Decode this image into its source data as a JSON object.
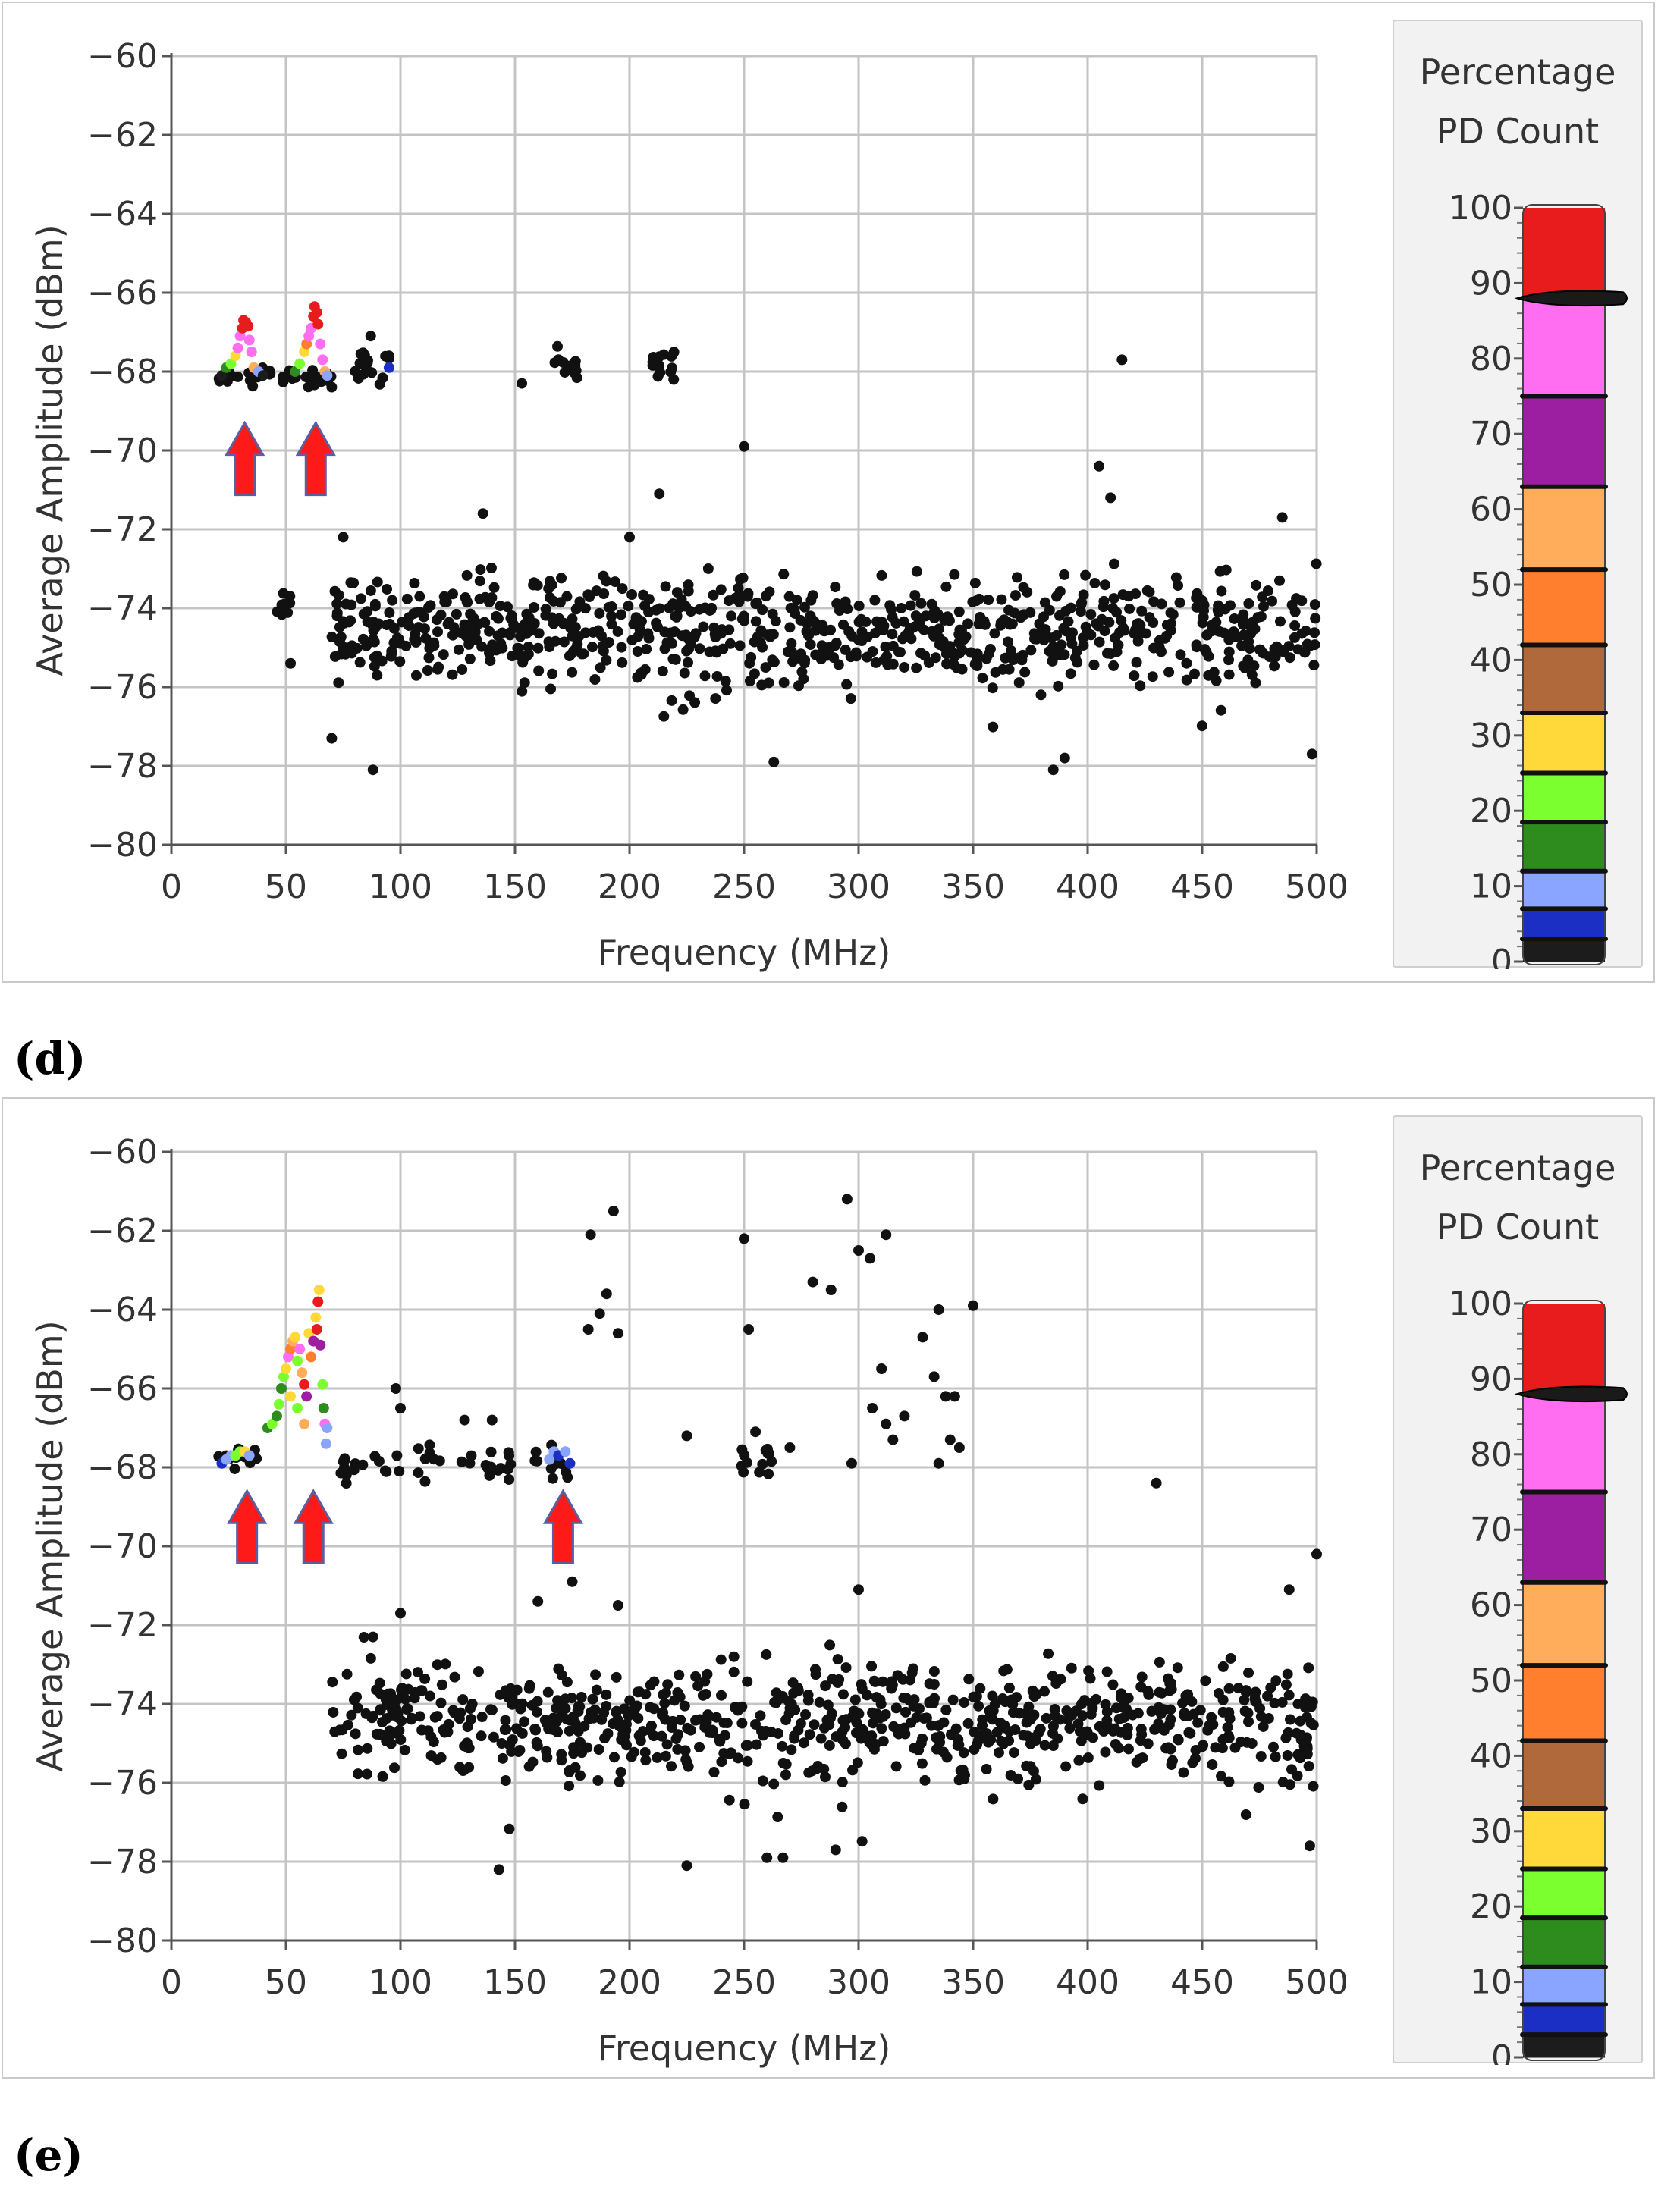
{
  "colors": {
    "point_default": "#111111",
    "grid": "#c4c4c4",
    "axis_text": "#333333",
    "arrow": "#ff1a1a",
    "arrow_edge": "#5a5fa0"
  },
  "legend": {
    "title_line1": "Percentage",
    "title_line2": "PD Count",
    "ticks": [
      "100",
      "90",
      "80",
      "70",
      "60",
      "50",
      "40",
      "30",
      "20",
      "10",
      "0"
    ],
    "bands": [
      {
        "from": 0,
        "to": 3,
        "color": "#1c1c1c"
      },
      {
        "from": 3,
        "to": 7,
        "color": "#1b2fc4"
      },
      {
        "from": 7,
        "to": 12,
        "color": "#8aa5ff"
      },
      {
        "from": 12,
        "to": 18.5,
        "color": "#2e8b1e"
      },
      {
        "from": 18.5,
        "to": 25,
        "color": "#7cff2e"
      },
      {
        "from": 25,
        "to": 33,
        "color": "#ffd93a"
      },
      {
        "from": 33,
        "to": 42,
        "color": "#b0693a"
      },
      {
        "from": 42,
        "to": 52,
        "color": "#ff7f2e"
      },
      {
        "from": 52,
        "to": 63,
        "color": "#ffad5a"
      },
      {
        "from": 63,
        "to": 75,
        "color": "#9b1fa0"
      },
      {
        "from": 75,
        "to": 88,
        "color": "#ff6ef0"
      },
      {
        "from": 88,
        "to": 100,
        "color": "#e81c1c"
      }
    ],
    "band_marks": [
      3,
      7,
      12,
      18.5,
      25,
      33,
      42,
      52,
      63,
      75
    ],
    "pointer_value": 88
  },
  "chart_data": [
    {
      "panel": "d",
      "caption": "(d)",
      "type": "scatter",
      "xlabel": "Frequency (MHz)",
      "ylabel": "Average Amplitude (dBm)",
      "xlim": [
        0,
        500
      ],
      "ylim": [
        -80,
        -60
      ],
      "xticks": [
        "0",
        "50",
        "100",
        "150",
        "200",
        "250",
        "300",
        "350",
        "400",
        "450",
        "500"
      ],
      "yticks": [
        "-60",
        "-62",
        "-64",
        "-66",
        "-68",
        "-70",
        "-72",
        "-74",
        "-76",
        "-78",
        "-80"
      ],
      "grid": true,
      "arrows_at_mhz": [
        32,
        63
      ],
      "arrow_tip_dbm": -69.3,
      "colored_points": [
        [
          22,
          -68.1,
          "#1c1c1c"
        ],
        [
          24,
          -67.9,
          "#2e8b1e"
        ],
        [
          26,
          -67.8,
          "#7cff2e"
        ],
        [
          28,
          -67.6,
          "#ffd93a"
        ],
        [
          29,
          -67.4,
          "#ff6ef0"
        ],
        [
          30,
          -67.1,
          "#ff6ef0"
        ],
        [
          31,
          -66.9,
          "#e81c1c"
        ],
        [
          31.5,
          -66.7,
          "#e81c1c"
        ],
        [
          32.5,
          -66.75,
          "#e81c1c"
        ],
        [
          33.5,
          -66.85,
          "#e81c1c"
        ],
        [
          34,
          -67.2,
          "#ff6ef0"
        ],
        [
          35,
          -67.5,
          "#ff6ef0"
        ],
        [
          36,
          -67.9,
          "#ffad5a"
        ],
        [
          38,
          -68.0,
          "#8aa5ff"
        ],
        [
          40,
          -68.1,
          "#1c1c1c"
        ],
        [
          54,
          -68.0,
          "#2e8b1e"
        ],
        [
          56,
          -67.8,
          "#7cff2e"
        ],
        [
          58,
          -67.5,
          "#ffd93a"
        ],
        [
          59,
          -67.3,
          "#ff7f2e"
        ],
        [
          60,
          -67.1,
          "#ff6ef0"
        ],
        [
          61,
          -66.9,
          "#ff6ef0"
        ],
        [
          62,
          -66.6,
          "#e81c1c"
        ],
        [
          62.5,
          -66.35,
          "#e81c1c"
        ],
        [
          63.5,
          -66.5,
          "#e81c1c"
        ],
        [
          64,
          -66.8,
          "#e81c1c"
        ],
        [
          65,
          -67.3,
          "#ff6ef0"
        ],
        [
          66,
          -67.7,
          "#ff6ef0"
        ],
        [
          67,
          -68.0,
          "#ffad5a"
        ],
        [
          68,
          -68.1,
          "#8aa5ff"
        ],
        [
          95,
          -67.9,
          "#1b2fc4"
        ]
      ],
      "noise_clusters": [
        {
          "x": [
            20,
            70
          ],
          "y": [
            -68.6,
            -67.7
          ],
          "n": 42
        },
        {
          "x": [
            80,
            98
          ],
          "y": [
            -68.6,
            -67.2
          ],
          "n": 16
        },
        {
          "x": [
            165,
            178
          ],
          "y": [
            -68.3,
            -67.2
          ],
          "n": 12
        },
        {
          "x": [
            208,
            220
          ],
          "y": [
            -68.5,
            -67.2
          ],
          "n": 16
        },
        {
          "x": [
            46,
            52
          ],
          "y": [
            -74.6,
            -73.2
          ],
          "n": 10
        },
        {
          "x": [
            70,
            500
          ],
          "y": [
            -76.5,
            -72.6
          ],
          "n": 760
        },
        {
          "x": [
            70,
            500
          ],
          "y": [
            -78.2,
            -71.8
          ],
          "n": 70
        }
      ],
      "outliers": [
        [
          87,
          -67.1
        ],
        [
          95,
          -67.6
        ],
        [
          153,
          -68.3
        ],
        [
          213,
          -71.1
        ],
        [
          250,
          -69.9
        ],
        [
          415,
          -67.7
        ],
        [
          405,
          -70.4
        ],
        [
          410,
          -71.2
        ],
        [
          136,
          -71.6
        ],
        [
          75,
          -72.2
        ],
        [
          200,
          -72.2
        ],
        [
          485,
          -71.7
        ],
        [
          263,
          -77.9
        ],
        [
          385,
          -78.1
        ],
        [
          390,
          -77.8
        ],
        [
          88,
          -78.1
        ],
        [
          70,
          -77.3
        ],
        [
          498,
          -77.7
        ],
        [
          52,
          -75.4
        ]
      ]
    },
    {
      "panel": "e",
      "caption": "(e)",
      "type": "scatter",
      "xlabel": "Frequency (MHz)",
      "ylabel": "Average Amplitude (dBm)",
      "xlim": [
        0,
        500
      ],
      "ylim": [
        -80,
        -60
      ],
      "xticks": [
        "0",
        "50",
        "100",
        "150",
        "200",
        "250",
        "300",
        "350",
        "400",
        "450",
        "500"
      ],
      "yticks": [
        "-60",
        "-62",
        "-64",
        "-66",
        "-68",
        "-70",
        "-72",
        "-74",
        "-76",
        "-78",
        "-80"
      ],
      "grid": true,
      "arrows_at_mhz": [
        33,
        62,
        171
      ],
      "arrow_tip_dbm": -68.6,
      "colored_points": [
        [
          22,
          -67.9,
          "#1b2fc4"
        ],
        [
          24,
          -67.8,
          "#8aa5ff"
        ],
        [
          26,
          -67.7,
          "#8aa5ff"
        ],
        [
          28,
          -67.7,
          "#7cff2e"
        ],
        [
          30,
          -67.6,
          "#7cff2e"
        ],
        [
          32,
          -67.6,
          "#ffd93a"
        ],
        [
          34,
          -67.7,
          "#8aa5ff"
        ],
        [
          42,
          -67.0,
          "#2e8b1e"
        ],
        [
          44,
          -66.9,
          "#7cff2e"
        ],
        [
          46,
          -66.7,
          "#2e8b1e"
        ],
        [
          47,
          -66.4,
          "#7cff2e"
        ],
        [
          48,
          -66.0,
          "#2e8b1e"
        ],
        [
          49,
          -65.7,
          "#7cff2e"
        ],
        [
          50,
          -65.5,
          "#ffd93a"
        ],
        [
          51,
          -65.2,
          "#ff6ef0"
        ],
        [
          52,
          -65.0,
          "#ff7f2e"
        ],
        [
          53,
          -64.8,
          "#ffad5a"
        ],
        [
          54,
          -64.7,
          "#ffd93a"
        ],
        [
          55,
          -65.3,
          "#7cff2e"
        ],
        [
          56,
          -65.0,
          "#ff6ef0"
        ],
        [
          57,
          -65.6,
          "#ffad5a"
        ],
        [
          58,
          -65.9,
          "#e81c1c"
        ],
        [
          59,
          -66.2,
          "#9b1fa0"
        ],
        [
          60,
          -64.6,
          "#ffd93a"
        ],
        [
          61,
          -65.2,
          "#ff7f2e"
        ],
        [
          62,
          -64.8,
          "#9b1fa0"
        ],
        [
          63,
          -64.2,
          "#ffd93a"
        ],
        [
          63.5,
          -64.5,
          "#e81c1c"
        ],
        [
          64,
          -63.8,
          "#e81c1c"
        ],
        [
          64.5,
          -63.5,
          "#ffd93a"
        ],
        [
          65,
          -64.9,
          "#9b1fa0"
        ],
        [
          66,
          -65.9,
          "#7cff2e"
        ],
        [
          66.5,
          -66.5,
          "#2e8b1e"
        ],
        [
          67,
          -66.9,
          "#ff6ef0"
        ],
        [
          67.5,
          -67.4,
          "#8aa5ff"
        ],
        [
          68,
          -67.0,
          "#8aa5ff"
        ],
        [
          55,
          -66.5,
          "#7cff2e"
        ],
        [
          52,
          -66.2,
          "#ffd93a"
        ],
        [
          58,
          -66.9,
          "#ffad5a"
        ],
        [
          165,
          -67.8,
          "#8aa5ff"
        ],
        [
          167,
          -67.6,
          "#8aa5ff"
        ],
        [
          169,
          -67.7,
          "#1b2fc4"
        ],
        [
          172,
          -67.6,
          "#8aa5ff"
        ],
        [
          174,
          -67.9,
          "#1b2fc4"
        ]
      ],
      "noise_clusters": [
        {
          "x": [
            20,
            42
          ],
          "y": [
            -68.3,
            -67.2
          ],
          "n": 14
        },
        {
          "x": [
            68,
            178
          ],
          "y": [
            -68.5,
            -67.2
          ],
          "n": 50
        },
        {
          "x": [
            245,
            262
          ],
          "y": [
            -68.4,
            -67.2
          ],
          "n": 14
        },
        {
          "x": [
            70,
            500
          ],
          "y": [
            -76.5,
            -72.4
          ],
          "n": 720
        },
        {
          "x": [
            70,
            500
          ],
          "y": [
            -78.2,
            -71.6
          ],
          "n": 80
        }
      ],
      "outliers": [
        [
          98,
          -66.0
        ],
        [
          100,
          -66.5
        ],
        [
          128,
          -66.8
        ],
        [
          140,
          -66.8
        ],
        [
          183,
          -62.1
        ],
        [
          193,
          -61.5
        ],
        [
          182,
          -64.5
        ],
        [
          187,
          -64.1
        ],
        [
          190,
          -63.6
        ],
        [
          195,
          -64.6
        ],
        [
          250,
          -62.2
        ],
        [
          252,
          -64.5
        ],
        [
          225,
          -67.2
        ],
        [
          255,
          -67.1
        ],
        [
          280,
          -63.3
        ],
        [
          288,
          -63.5
        ],
        [
          295,
          -61.2
        ],
        [
          300,
          -62.5
        ],
        [
          305,
          -62.7
        ],
        [
          312,
          -62.1
        ],
        [
          310,
          -65.5
        ],
        [
          306,
          -66.5
        ],
        [
          312,
          -66.9
        ],
        [
          315,
          -67.3
        ],
        [
          320,
          -66.7
        ],
        [
          328,
          -64.7
        ],
        [
          335,
          -64.0
        ],
        [
          333,
          -65.7
        ],
        [
          338,
          -66.2
        ],
        [
          342,
          -66.2
        ],
        [
          350,
          -63.9
        ],
        [
          340,
          -67.3
        ],
        [
          344,
          -67.5
        ],
        [
          297,
          -67.9
        ],
        [
          335,
          -67.9
        ],
        [
          270,
          -67.5
        ],
        [
          430,
          -68.4
        ],
        [
          500,
          -70.2
        ],
        [
          488,
          -71.1
        ],
        [
          160,
          -71.4
        ],
        [
          195,
          -71.5
        ],
        [
          300,
          -71.1
        ],
        [
          88,
          -72.3
        ],
        [
          100,
          -71.7
        ],
        [
          143,
          -78.2
        ],
        [
          225,
          -78.1
        ],
        [
          260,
          -77.9
        ],
        [
          267,
          -77.9
        ],
        [
          290,
          -77.7
        ],
        [
          497,
          -77.6
        ],
        [
          175,
          -70.9
        ]
      ]
    }
  ],
  "captions": {
    "d": "(d)",
    "e": "(e)"
  }
}
